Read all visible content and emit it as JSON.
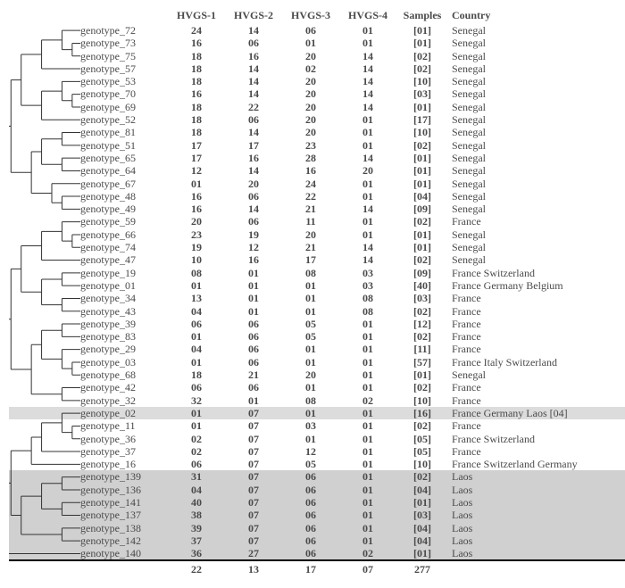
{
  "headers": {
    "h1": "HVGS-1",
    "h2": "HVGS-2",
    "h3": "HVGS-3",
    "h4": "HVGS-4",
    "samples": "Samples",
    "country": "Country"
  },
  "rows": [
    {
      "label": "genotype_72",
      "h1": "24",
      "h2": "14",
      "h3": "06",
      "h4": "01",
      "s": "[01]",
      "c": "Senegal",
      "shade": 0,
      "p": [
        72,
        72,
        72,
        72,
        72,
        72,
        72
      ]
    },
    {
      "label": "genotype_73",
      "h1": "16",
      "h2": "06",
      "h3": "01",
      "h4": "01",
      "s": "[01]",
      "c": "Senegal",
      "shade": 0,
      "p": [
        72,
        72,
        72,
        72,
        72,
        72,
        57
      ]
    },
    {
      "label": "genotype_75",
      "h1": "18",
      "h2": "16",
      "h3": "20",
      "h4": "14",
      "s": "[02]",
      "c": "Senegal",
      "shade": 0,
      "p": [
        72,
        72,
        72,
        72,
        57,
        57,
        57
      ]
    },
    {
      "label": "genotype_57",
      "h1": "18",
      "h2": "14",
      "h3": "02",
      "h4": "14",
      "s": "[02]",
      "c": "Senegal",
      "shade": 0,
      "p": [
        72,
        72,
        72,
        72,
        57,
        57,
        40
      ]
    },
    {
      "label": "genotype_53",
      "h1": "18",
      "h2": "14",
      "h3": "20",
      "h4": "14",
      "s": "[10]",
      "c": "Senegal",
      "shade": 0,
      "p": [
        72,
        72,
        33,
        33,
        33,
        33,
        33
      ]
    },
    {
      "label": "genotype_70",
      "h1": "16",
      "h2": "14",
      "h3": "20",
      "h4": "14",
      "s": "[03]",
      "c": "Senegal",
      "shade": 0,
      "p": [
        72,
        72,
        33,
        33,
        33,
        33,
        21
      ]
    },
    {
      "label": "genotype_69",
      "h1": "18",
      "h2": "22",
      "h3": "20",
      "h4": "14",
      "s": "[01]",
      "c": "Senegal",
      "shade": 0,
      "p": [
        72,
        72,
        33,
        33,
        21,
        21,
        21
      ]
    },
    {
      "label": "genotype_52",
      "h1": "18",
      "h2": "06",
      "h3": "20",
      "h4": "01",
      "s": "[17]",
      "c": "Senegal",
      "shade": 0,
      "p": [
        72,
        72,
        33,
        33,
        21,
        21,
        12
      ]
    },
    {
      "label": "genotype_81",
      "h1": "18",
      "h2": "14",
      "h3": "20",
      "h4": "01",
      "s": "[10]",
      "c": "Senegal",
      "shade": 0,
      "p": [
        72,
        50,
        50,
        50,
        50,
        50,
        50
      ]
    },
    {
      "label": "genotype_51",
      "h1": "17",
      "h2": "17",
      "h3": "23",
      "h4": "01",
      "s": "[02]",
      "c": "Senegal",
      "shade": 0,
      "p": [
        72,
        50,
        50,
        50,
        50,
        50,
        41
      ]
    },
    {
      "label": "genotype_65",
      "h1": "17",
      "h2": "16",
      "h3": "28",
      "h4": "14",
      "s": "[01]",
      "c": "Senegal",
      "shade": 0,
      "p": [
        72,
        50,
        50,
        50,
        32,
        32,
        32
      ]
    },
    {
      "label": "genotype_64",
      "h1": "12",
      "h2": "14",
      "h3": "16",
      "h4": "20",
      "s": "[01]",
      "c": "Senegal",
      "shade": 0,
      "p": [
        72,
        50,
        50,
        50,
        32,
        32,
        24
      ]
    },
    {
      "label": "genotype_67",
      "h1": "01",
      "h2": "20",
      "h3": "24",
      "h4": "01",
      "s": "[01]",
      "c": "Senegal",
      "shade": 0,
      "p": [
        72,
        50,
        50,
        19,
        19,
        19,
        19
      ]
    },
    {
      "label": "genotype_48",
      "h1": "16",
      "h2": "06",
      "h3": "22",
      "h4": "01",
      "s": "[04]",
      "c": "Senegal",
      "shade": 0,
      "p": [
        72,
        50,
        50,
        19,
        19,
        11,
        11
      ]
    },
    {
      "label": "genotype_49",
      "h1": "16",
      "h2": "14",
      "h3": "21",
      "h4": "14",
      "s": "[09]",
      "c": "Senegal",
      "shade": 0,
      "p": [
        72,
        50,
        50,
        19,
        19,
        11,
        6
      ]
    },
    {
      "label": "genotype_59",
      "h1": "20",
      "h2": "06",
      "h3": "11",
      "h4": "01",
      "s": "[02]",
      "c": "France",
      "shade": 0,
      "p": [
        61,
        61,
        61,
        61,
        61,
        61,
        61
      ]
    },
    {
      "label": "genotype_66",
      "h1": "23",
      "h2": "19",
      "h3": "20",
      "h4": "01",
      "s": "[01]",
      "c": "Senegal",
      "shade": 0,
      "p": [
        61,
        61,
        61,
        61,
        61,
        61,
        48
      ]
    },
    {
      "label": "genotype_74",
      "h1": "19",
      "h2": "12",
      "h3": "21",
      "h4": "14",
      "s": "[01]",
      "c": "Senegal",
      "shade": 0,
      "p": [
        61,
        61,
        61,
        61,
        48,
        48,
        48
      ]
    },
    {
      "label": "genotype_47",
      "h1": "10",
      "h2": "16",
      "h3": "17",
      "h4": "14",
      "s": "[02]",
      "c": "Senegal",
      "shade": 0,
      "p": [
        61,
        61,
        61,
        61,
        48,
        48,
        37
      ]
    },
    {
      "label": "genotype_19",
      "h1": "08",
      "h2": "01",
      "h3": "08",
      "h4": "03",
      "s": "[09]",
      "c": "France  Switzerland",
      "shade": 0,
      "p": [
        61,
        61,
        35,
        35,
        35,
        35,
        35
      ]
    },
    {
      "label": "genotype_01",
      "h1": "01",
      "h2": "01",
      "h3": "01",
      "h4": "03",
      "s": "[40]",
      "c": "France   Germany   Belgium",
      "shade": 0,
      "p": [
        61,
        61,
        35,
        35,
        35,
        35,
        26
      ]
    },
    {
      "label": "genotype_34",
      "h1": "13",
      "h2": "01",
      "h3": "01",
      "h4": "08",
      "s": "[03]",
      "c": "France",
      "shade": 0,
      "p": [
        61,
        61,
        35,
        35,
        22,
        22,
        22
      ]
    },
    {
      "label": "genotype_43",
      "h1": "04",
      "h2": "01",
      "h3": "01",
      "h4": "08",
      "s": "[02]",
      "c": "France",
      "shade": 0,
      "p": [
        61,
        61,
        35,
        35,
        22,
        22,
        15
      ]
    },
    {
      "label": "genotype_39",
      "h1": "06",
      "h2": "06",
      "h3": "05",
      "h4": "01",
      "s": "[12]",
      "c": "France",
      "shade": 0,
      "p": [
        61,
        45,
        45,
        45,
        45,
        45,
        45
      ]
    },
    {
      "label": "genotype_83",
      "h1": "01",
      "h2": "06",
      "h3": "05",
      "h4": "01",
      "s": "[02]",
      "c": "France",
      "shade": 0,
      "p": [
        61,
        45,
        45,
        45,
        45,
        45,
        38
      ]
    },
    {
      "label": "genotype_29",
      "h1": "04",
      "h2": "06",
      "h3": "01",
      "h4": "01",
      "s": "[11]",
      "c": "France",
      "shade": 0,
      "p": [
        61,
        45,
        45,
        45,
        30,
        30,
        30
      ]
    },
    {
      "label": "genotype_03",
      "h1": "01",
      "h2": "06",
      "h3": "01",
      "h4": "01",
      "s": "[57]",
      "c": "France    Italy     Switzerland",
      "shade": 0,
      "p": [
        61,
        45,
        45,
        45,
        30,
        30,
        22
      ]
    },
    {
      "label": "genotype_68",
      "h1": "18",
      "h2": "21",
      "h3": "20",
      "h4": "01",
      "s": "[01]",
      "c": "Senegal",
      "shade": 0,
      "p": [
        61,
        45,
        45,
        22,
        22,
        22,
        22
      ]
    },
    {
      "label": "genotype_42",
      "h1": "06",
      "h2": "06",
      "h3": "01",
      "h4": "01",
      "s": "[02]",
      "c": "France",
      "shade": 0,
      "p": [
        61,
        45,
        45,
        22,
        22,
        14,
        14
      ]
    },
    {
      "label": "genotype_32",
      "h1": "32",
      "h2": "01",
      "h3": "08",
      "h4": "02",
      "s": "[10]",
      "c": "France",
      "shade": 0,
      "p": [
        61,
        45,
        45,
        22,
        22,
        14,
        8
      ]
    },
    {
      "label": "genotype_02",
      "h1": "01",
      "h2": "07",
      "h3": "01",
      "h4": "01",
      "s": "[16]",
      "c": "France  Germany   Laos [04]",
      "shade": 2,
      "p": [
        53,
        53,
        53,
        53,
        53,
        53,
        53
      ]
    },
    {
      "label": "genotype_11",
      "h1": "01",
      "h2": "07",
      "h3": "03",
      "h4": "01",
      "s": "[02]",
      "c": "France",
      "shade": 0,
      "p": [
        53,
        53,
        53,
        53,
        53,
        53,
        42
      ]
    },
    {
      "label": "genotype_36",
      "h1": "02",
      "h2": "07",
      "h3": "01",
      "h4": "01",
      "s": "[05]",
      "c": "France Switzerland",
      "shade": 0,
      "p": [
        53,
        53,
        53,
        53,
        42,
        42,
        42
      ]
    },
    {
      "label": "genotype_37",
      "h1": "02",
      "h2": "07",
      "h3": "12",
      "h4": "01",
      "s": "[05]",
      "c": "France",
      "shade": 0,
      "p": [
        53,
        53,
        53,
        53,
        42,
        42,
        33
      ]
    },
    {
      "label": "genotype_16",
      "h1": "06",
      "h2": "07",
      "h3": "05",
      "h4": "01",
      "s": "[10]",
      "c": "France Switzerland Germany",
      "shade": 0,
      "p": [
        53,
        53,
        53,
        28,
        28,
        28,
        28
      ]
    },
    {
      "label": "genotype_139",
      "h1": "31",
      "h2": "07",
      "h3": "06",
      "h4": "01",
      "s": "[02]",
      "c": "Laos",
      "shade": 1,
      "p": [
        53,
        40,
        40,
        40,
        40,
        40,
        40
      ]
    },
    {
      "label": "genotype_136",
      "h1": "04",
      "h2": "07",
      "h3": "06",
      "h4": "01",
      "s": "[04]",
      "c": "Laos",
      "shade": 1,
      "p": [
        53,
        40,
        40,
        40,
        40,
        40,
        30
      ]
    },
    {
      "label": "genotype_141",
      "h1": "40",
      "h2": "07",
      "h3": "06",
      "h4": "01",
      "s": "[01]",
      "c": "Laos",
      "shade": 1,
      "p": [
        53,
        40,
        40,
        40,
        28,
        28,
        28
      ]
    },
    {
      "label": "genotype_137",
      "h1": "38",
      "h2": "07",
      "h3": "06",
      "h4": "01",
      "s": "[03]",
      "c": "Laos",
      "shade": 1,
      "p": [
        53,
        40,
        40,
        40,
        28,
        28,
        20
      ]
    },
    {
      "label": "genotype_138",
      "h1": "39",
      "h2": "07",
      "h3": "06",
      "h4": "01",
      "s": "[04]",
      "c": "Laos",
      "shade": 1,
      "p": [
        53,
        40,
        18,
        18,
        18,
        18,
        18
      ]
    },
    {
      "label": "genotype_142",
      "h1": "37",
      "h2": "07",
      "h3": "06",
      "h4": "01",
      "s": "[04]",
      "c": "Laos",
      "shade": 1,
      "p": [
        53,
        40,
        18,
        18,
        18,
        18,
        10
      ]
    },
    {
      "label": "genotype_140",
      "h1": "36",
      "h2": "27",
      "h3": "06",
      "h4": "02",
      "s": "[01]",
      "c": "Laos",
      "shade": 1,
      "p": [
        0,
        0,
        0,
        0,
        0,
        0,
        0
      ]
    }
  ],
  "totals": {
    "h1": "22",
    "h2": "13",
    "h3": "17",
    "h4": "07",
    "s": "277"
  },
  "tree": {
    "width": 80,
    "rowHeight": 14.3,
    "levels": 7,
    "strokeColor": "#333",
    "strokeWidth": 1
  }
}
